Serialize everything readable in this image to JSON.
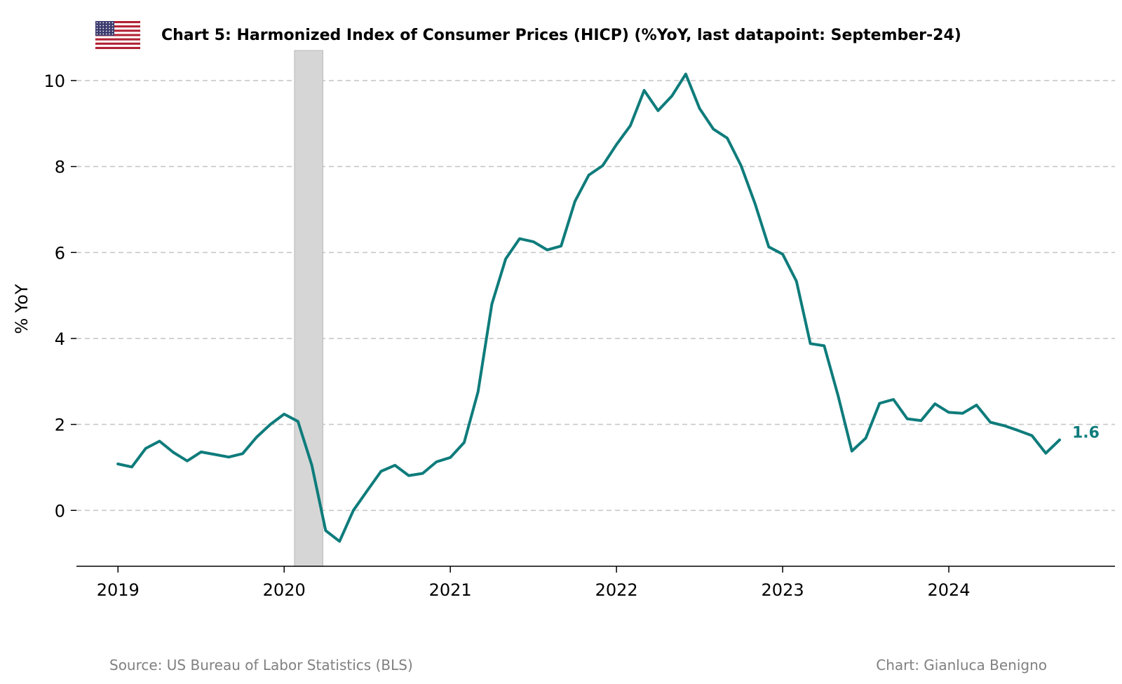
{
  "chart_data": {
    "type": "line",
    "title": "Chart 5: Harmonized Index of Consumer Prices (HICP) (%YoY, last datapoint: September-24)",
    "ylabel": "% YoY",
    "xlabel": "",
    "ylim": [
      -1.3,
      10.7
    ],
    "xlim": [
      "2018-10",
      "2025-01"
    ],
    "yticks": [
      0,
      2,
      4,
      6,
      8,
      10
    ],
    "xticks": [
      "2019",
      "2020",
      "2021",
      "2022",
      "2023",
      "2024"
    ],
    "grid": "horizontal dashed",
    "shaded_period": {
      "start": "2020-02",
      "end": "2020-04"
    },
    "series": [
      {
        "color": "#0e7c7b",
        "last_value_label": "1.6",
        "points": [
          [
            "2019-01",
            1.08
          ],
          [
            "2019-02",
            1.01
          ],
          [
            "2019-03",
            1.44
          ],
          [
            "2019-04",
            1.61
          ],
          [
            "2019-05",
            1.35
          ],
          [
            "2019-06",
            1.15
          ],
          [
            "2019-07",
            1.36
          ],
          [
            "2019-08",
            1.3
          ],
          [
            "2019-09",
            1.24
          ],
          [
            "2019-10",
            1.32
          ],
          [
            "2019-11",
            1.7
          ],
          [
            "2019-12",
            2.0
          ],
          [
            "2020-01",
            2.24
          ],
          [
            "2020-02",
            2.07
          ],
          [
            "2020-03",
            1.05
          ],
          [
            "2020-04",
            -0.47
          ],
          [
            "2020-05",
            -0.72
          ],
          [
            "2020-06",
            0.0
          ],
          [
            "2020-07",
            0.46
          ],
          [
            "2020-08",
            0.91
          ],
          [
            "2020-09",
            1.05
          ],
          [
            "2020-10",
            0.81
          ],
          [
            "2020-11",
            0.86
          ],
          [
            "2020-12",
            1.13
          ],
          [
            "2021-01",
            1.23
          ],
          [
            "2021-02",
            1.58
          ],
          [
            "2021-03",
            2.76
          ],
          [
            "2021-04",
            4.8
          ],
          [
            "2021-05",
            5.85
          ],
          [
            "2021-06",
            6.32
          ],
          [
            "2021-07",
            6.25
          ],
          [
            "2021-08",
            6.06
          ],
          [
            "2021-09",
            6.15
          ],
          [
            "2021-10",
            7.19
          ],
          [
            "2021-11",
            7.8
          ],
          [
            "2021-12",
            8.02
          ],
          [
            "2022-01",
            8.51
          ],
          [
            "2022-02",
            8.95
          ],
          [
            "2022-03",
            9.77
          ],
          [
            "2022-04",
            9.3
          ],
          [
            "2022-05",
            9.64
          ],
          [
            "2022-06",
            10.15
          ],
          [
            "2022-07",
            9.35
          ],
          [
            "2022-08",
            8.87
          ],
          [
            "2022-09",
            8.66
          ],
          [
            "2022-10",
            8.02
          ],
          [
            "2022-11",
            7.14
          ],
          [
            "2022-12",
            6.13
          ],
          [
            "2023-01",
            5.96
          ],
          [
            "2023-02",
            5.33
          ],
          [
            "2023-03",
            3.88
          ],
          [
            "2023-04",
            3.83
          ],
          [
            "2023-05",
            2.67
          ],
          [
            "2023-06",
            1.38
          ],
          [
            "2023-07",
            1.68
          ],
          [
            "2023-08",
            2.49
          ],
          [
            "2023-09",
            2.58
          ],
          [
            "2023-10",
            2.13
          ],
          [
            "2023-11",
            2.09
          ],
          [
            "2023-12",
            2.48
          ],
          [
            "2024-01",
            2.28
          ],
          [
            "2024-02",
            2.26
          ],
          [
            "2024-03",
            2.45
          ],
          [
            "2024-04",
            2.05
          ],
          [
            "2024-05",
            1.97
          ],
          [
            "2024-06",
            1.86
          ],
          [
            "2024-07",
            1.74
          ],
          [
            "2024-08",
            1.33
          ],
          [
            "2024-09",
            1.64
          ]
        ]
      }
    ]
  },
  "footer": {
    "source": "Source: US Bureau of Labor Statistics (BLS)",
    "credit": "Chart: Gianluca Benigno"
  },
  "icons": {
    "flag": "us-flag-icon"
  }
}
